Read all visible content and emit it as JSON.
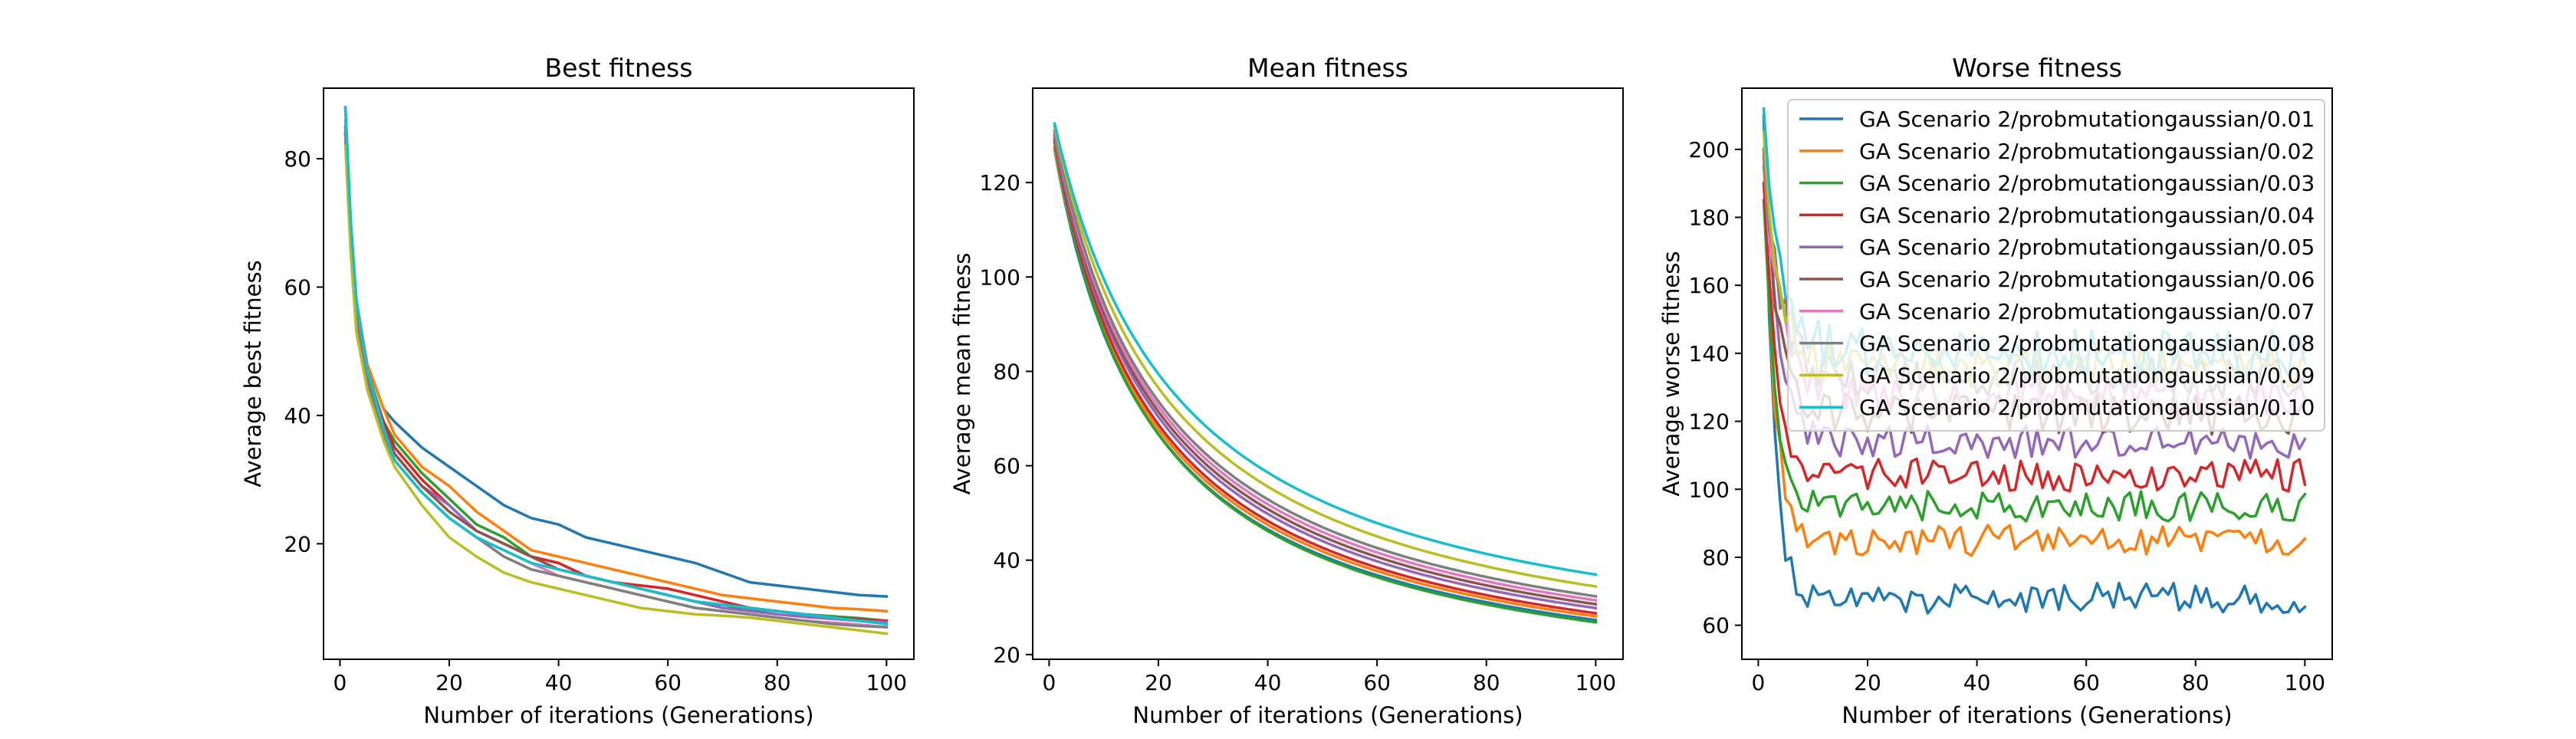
{
  "chart_data": [
    {
      "type": "line",
      "title": "Best fitness",
      "xlabel": "Number of iterations (Generations)",
      "ylabel": "Average best fitness",
      "xlim": [
        -3,
        105
      ],
      "ylim": [
        2,
        91
      ],
      "xticks": [
        0,
        20,
        40,
        60,
        80,
        100
      ],
      "yticks": [
        20,
        40,
        60,
        80
      ],
      "grid": false,
      "series_points": {
        "0.01": [
          [
            1,
            88
          ],
          [
            2,
            70
          ],
          [
            3,
            58
          ],
          [
            5,
            48
          ],
          [
            8,
            41
          ],
          [
            10,
            39
          ],
          [
            15,
            35
          ],
          [
            20,
            32
          ],
          [
            25,
            29
          ],
          [
            30,
            26
          ],
          [
            35,
            24
          ],
          [
            40,
            23
          ],
          [
            45,
            21
          ],
          [
            50,
            20
          ],
          [
            55,
            19
          ],
          [
            60,
            18
          ],
          [
            65,
            17
          ],
          [
            70,
            15.5
          ],
          [
            75,
            14
          ],
          [
            80,
            13.5
          ],
          [
            85,
            13
          ],
          [
            90,
            12.5
          ],
          [
            95,
            12
          ],
          [
            100,
            11.8
          ]
        ],
        "0.02": [
          [
            1,
            86
          ],
          [
            2,
            70
          ],
          [
            3,
            58
          ],
          [
            5,
            48
          ],
          [
            8,
            41
          ],
          [
            10,
            37
          ],
          [
            15,
            32
          ],
          [
            20,
            29
          ],
          [
            25,
            25
          ],
          [
            30,
            22
          ],
          [
            35,
            19
          ],
          [
            40,
            18
          ],
          [
            45,
            17
          ],
          [
            50,
            16
          ],
          [
            55,
            15
          ],
          [
            60,
            14
          ],
          [
            65,
            13
          ],
          [
            70,
            12
          ],
          [
            75,
            11.5
          ],
          [
            80,
            11
          ],
          [
            85,
            10.5
          ],
          [
            90,
            10
          ],
          [
            95,
            9.8
          ],
          [
            100,
            9.5
          ]
        ],
        "0.03": [
          [
            1,
            85
          ],
          [
            2,
            68
          ],
          [
            3,
            56
          ],
          [
            5,
            47
          ],
          [
            8,
            39
          ],
          [
            10,
            36
          ],
          [
            15,
            31
          ],
          [
            20,
            27
          ],
          [
            25,
            23
          ],
          [
            30,
            21
          ],
          [
            35,
            18
          ],
          [
            40,
            17
          ],
          [
            45,
            15
          ],
          [
            50,
            14
          ],
          [
            55,
            13
          ],
          [
            60,
            12
          ],
          [
            65,
            11
          ],
          [
            70,
            10
          ],
          [
            75,
            9.8
          ],
          [
            80,
            9.5
          ],
          [
            85,
            9
          ],
          [
            90,
            8.7
          ],
          [
            95,
            8.4
          ],
          [
            100,
            8
          ]
        ],
        "0.04": [
          [
            1,
            84
          ],
          [
            2,
            67
          ],
          [
            3,
            56
          ],
          [
            5,
            46
          ],
          [
            8,
            39
          ],
          [
            10,
            35
          ],
          [
            15,
            30
          ],
          [
            20,
            26
          ],
          [
            25,
            22
          ],
          [
            30,
            20
          ],
          [
            35,
            18
          ],
          [
            40,
            17
          ],
          [
            45,
            15
          ],
          [
            50,
            14
          ],
          [
            55,
            13.5
          ],
          [
            60,
            13
          ],
          [
            65,
            12
          ],
          [
            70,
            11
          ],
          [
            75,
            10
          ],
          [
            80,
            9.5
          ],
          [
            85,
            9
          ],
          [
            90,
            8.5
          ],
          [
            95,
            8.2
          ],
          [
            100,
            8
          ]
        ],
        "0.05": [
          [
            1,
            85
          ],
          [
            2,
            68
          ],
          [
            3,
            55
          ],
          [
            5,
            46
          ],
          [
            8,
            38
          ],
          [
            10,
            34
          ],
          [
            15,
            29
          ],
          [
            20,
            26
          ],
          [
            25,
            22
          ],
          [
            30,
            20
          ],
          [
            35,
            18
          ],
          [
            40,
            16
          ],
          [
            45,
            15
          ],
          [
            50,
            14
          ],
          [
            55,
            13
          ],
          [
            60,
            12
          ],
          [
            65,
            11
          ],
          [
            70,
            10
          ],
          [
            75,
            9.5
          ],
          [
            80,
            9
          ],
          [
            85,
            8.6
          ],
          [
            90,
            8.3
          ],
          [
            95,
            8
          ],
          [
            100,
            7.8
          ]
        ],
        "0.06": [
          [
            1,
            84
          ],
          [
            2,
            67
          ],
          [
            3,
            55
          ],
          [
            5,
            46
          ],
          [
            8,
            38
          ],
          [
            10,
            34
          ],
          [
            15,
            29
          ],
          [
            20,
            25
          ],
          [
            25,
            22
          ],
          [
            30,
            20
          ],
          [
            35,
            18
          ],
          [
            40,
            16
          ],
          [
            45,
            15
          ],
          [
            50,
            14
          ],
          [
            55,
            13
          ],
          [
            60,
            12
          ],
          [
            65,
            11
          ],
          [
            70,
            10.5
          ],
          [
            75,
            10
          ],
          [
            80,
            9.5
          ],
          [
            85,
            9
          ],
          [
            90,
            8.5
          ],
          [
            95,
            8
          ],
          [
            100,
            7.5
          ]
        ],
        "0.07": [
          [
            1,
            83
          ],
          [
            2,
            66
          ],
          [
            3,
            54
          ],
          [
            5,
            45
          ],
          [
            8,
            37
          ],
          [
            10,
            33
          ],
          [
            15,
            28
          ],
          [
            20,
            24
          ],
          [
            25,
            21
          ],
          [
            30,
            19
          ],
          [
            35,
            17
          ],
          [
            40,
            15
          ],
          [
            45,
            14
          ],
          [
            50,
            13
          ],
          [
            55,
            12
          ],
          [
            60,
            11
          ],
          [
            65,
            10
          ],
          [
            70,
            9.5
          ],
          [
            75,
            9
          ],
          [
            80,
            8.5
          ],
          [
            85,
            8
          ],
          [
            90,
            7.7
          ],
          [
            95,
            7.4
          ],
          [
            100,
            7
          ]
        ],
        "0.08": [
          [
            1,
            84
          ],
          [
            2,
            67
          ],
          [
            3,
            55
          ],
          [
            5,
            45
          ],
          [
            8,
            37
          ],
          [
            10,
            33
          ],
          [
            15,
            28
          ],
          [
            20,
            24
          ],
          [
            25,
            21
          ],
          [
            30,
            18
          ],
          [
            35,
            16
          ],
          [
            40,
            15
          ],
          [
            45,
            14
          ],
          [
            50,
            13
          ],
          [
            55,
            12
          ],
          [
            60,
            11
          ],
          [
            65,
            10
          ],
          [
            70,
            9.5
          ],
          [
            75,
            9
          ],
          [
            80,
            8.5
          ],
          [
            85,
            8
          ],
          [
            90,
            7.5
          ],
          [
            95,
            7.2
          ],
          [
            100,
            7
          ]
        ],
        "0.09": [
          [
            1,
            82
          ],
          [
            2,
            65
          ],
          [
            3,
            53
          ],
          [
            5,
            44
          ],
          [
            8,
            36
          ],
          [
            10,
            32
          ],
          [
            15,
            26
          ],
          [
            20,
            21
          ],
          [
            25,
            18
          ],
          [
            30,
            15.5
          ],
          [
            35,
            14
          ],
          [
            40,
            13
          ],
          [
            45,
            12
          ],
          [
            50,
            11
          ],
          [
            55,
            10
          ],
          [
            60,
            9.5
          ],
          [
            65,
            9
          ],
          [
            70,
            8.8
          ],
          [
            75,
            8.5
          ],
          [
            80,
            8
          ],
          [
            85,
            7.5
          ],
          [
            90,
            7
          ],
          [
            95,
            6.5
          ],
          [
            100,
            6
          ]
        ],
        "0.10": [
          [
            1,
            88
          ],
          [
            2,
            70
          ],
          [
            3,
            58
          ],
          [
            5,
            47
          ],
          [
            8,
            38
          ],
          [
            10,
            33
          ],
          [
            15,
            28
          ],
          [
            20,
            24
          ],
          [
            25,
            21
          ],
          [
            30,
            19
          ],
          [
            35,
            17
          ],
          [
            40,
            16
          ],
          [
            45,
            15
          ],
          [
            50,
            14
          ],
          [
            55,
            13
          ],
          [
            60,
            12
          ],
          [
            65,
            11
          ],
          [
            70,
            10.5
          ],
          [
            75,
            10
          ],
          [
            80,
            9.5
          ],
          [
            85,
            9
          ],
          [
            90,
            8.5
          ],
          [
            95,
            8
          ],
          [
            100,
            7.5
          ]
        ]
      }
    },
    {
      "type": "line",
      "title": "Mean fitness",
      "xlabel": "Number of iterations (Generations)",
      "ylabel": "Average mean fitness",
      "xlim": [
        -3,
        105
      ],
      "ylim": [
        19,
        140
      ],
      "xticks": [
        0,
        20,
        40,
        60,
        80,
        100
      ],
      "yticks": [
        20,
        40,
        60,
        80,
        100,
        120
      ],
      "grid": false,
      "series_model": {
        "form": "y = A + B / (1 + k * (x - 1))",
        "params": {
          "0.01": [
            9,
            118,
            0.055
          ],
          "0.02": [
            9.5,
            118,
            0.054
          ],
          "0.03": [
            8.5,
            120,
            0.056
          ],
          "0.04": [
            10,
            119,
            0.054
          ],
          "0.05": [
            10.5,
            119,
            0.052
          ],
          "0.06": [
            11,
            119,
            0.051
          ],
          "0.07": [
            11.5,
            119,
            0.05
          ],
          "0.08": [
            12,
            119,
            0.049
          ],
          "0.09": [
            13,
            119,
            0.046
          ],
          "0.10": [
            14.5,
            118,
            0.043
          ]
        }
      }
    },
    {
      "type": "line",
      "title": "Worse fitness",
      "xlabel": "Number of iterations (Generations)",
      "ylabel": "Average worse fitness",
      "xlim": [
        -3,
        105
      ],
      "ylim": [
        50,
        218
      ],
      "xticks": [
        0,
        20,
        40,
        60,
        80,
        100
      ],
      "yticks": [
        60,
        80,
        100,
        120,
        140,
        160,
        180,
        200
      ],
      "grid": false,
      "legend_position": "upper-right",
      "series_model": {
        "form": "y = plateau + (start - plateau) * exp(-(x-1)/tau) + noise(amp)",
        "params": {
          "0.01": {
            "start": 210,
            "plateau": 68,
            "tau": 1.8,
            "amp": 4.5
          },
          "0.02": {
            "start": 198,
            "plateau": 85,
            "tau": 2.0,
            "amp": 4.5
          },
          "0.03": {
            "start": 185,
            "plateau": 95,
            "tau": 2.2,
            "amp": 4.5
          },
          "0.04": {
            "start": 190,
            "plateau": 104,
            "tau": 2.3,
            "amp": 5
          },
          "0.05": {
            "start": 200,
            "plateau": 114,
            "tau": 2.5,
            "amp": 5
          },
          "0.06": {
            "start": 195,
            "plateau": 122,
            "tau": 2.7,
            "amp": 6
          },
          "0.07": {
            "start": 198,
            "plateau": 128,
            "tau": 3.0,
            "amp": 6
          },
          "0.08": {
            "start": 200,
            "plateau": 133,
            "tau": 3.0,
            "amp": 6
          },
          "0.09": {
            "start": 205,
            "plateau": 136,
            "tau": 3.0,
            "amp": 6
          },
          "0.10": {
            "start": 212,
            "plateau": 140,
            "tau": 3.2,
            "amp": 7
          }
        }
      }
    }
  ],
  "series": [
    {
      "key": "0.01",
      "name": "GA Scenario 2/probmutationgaussian/0.01",
      "color": "#1f77b4"
    },
    {
      "key": "0.02",
      "name": "GA Scenario 2/probmutationgaussian/0.02",
      "color": "#ff7f0e"
    },
    {
      "key": "0.03",
      "name": "GA Scenario 2/probmutationgaussian/0.03",
      "color": "#2ca02c"
    },
    {
      "key": "0.04",
      "name": "GA Scenario 2/probmutationgaussian/0.04",
      "color": "#d62728"
    },
    {
      "key": "0.05",
      "name": "GA Scenario 2/probmutationgaussian/0.05",
      "color": "#9467bd"
    },
    {
      "key": "0.06",
      "name": "GA Scenario 2/probmutationgaussian/0.06",
      "color": "#8c564b"
    },
    {
      "key": "0.07",
      "name": "GA Scenario 2/probmutationgaussian/0.07",
      "color": "#e377c2"
    },
    {
      "key": "0.08",
      "name": "GA Scenario 2/probmutationgaussian/0.08",
      "color": "#7f7f7f"
    },
    {
      "key": "0.09",
      "name": "GA Scenario 2/probmutationgaussian/0.09",
      "color": "#bcbd22"
    },
    {
      "key": "0.10",
      "name": "GA Scenario 2/probmutationgaussian/0.10",
      "color": "#17becf"
    }
  ]
}
